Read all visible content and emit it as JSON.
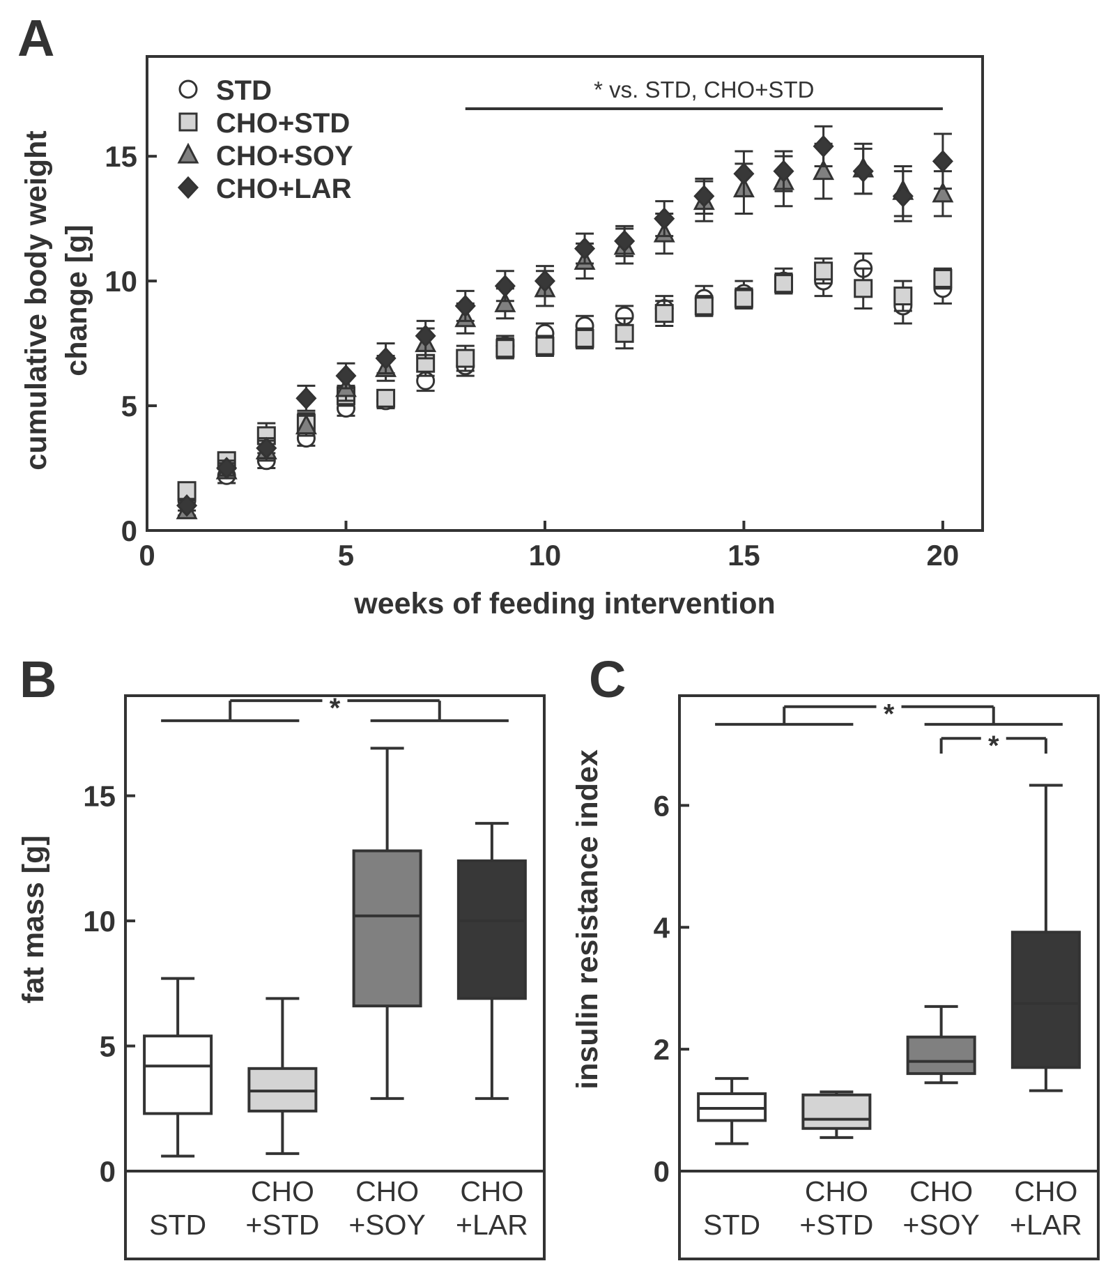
{
  "panels": {
    "a": {
      "label": "A"
    },
    "b": {
      "label": "B"
    },
    "c": {
      "label": "C"
    }
  },
  "colors": {
    "STD": "#ffffff",
    "CHO+STD": "#d4d4d4",
    "CHO+SOY": "#808080",
    "CHO+LAR": "#383838",
    "axis": "#333333"
  },
  "chart_data": [
    {
      "id": "A",
      "type": "scatter",
      "title": "",
      "xlabel": "weeks of feeding intervention",
      "ylabel_lines": [
        "cumulative body weight",
        "change [g]"
      ],
      "xlim": [
        0,
        21
      ],
      "ylim": [
        0,
        19
      ],
      "xticks": [
        0,
        5,
        10,
        15,
        20
      ],
      "yticks": [
        0,
        5,
        10,
        15
      ],
      "legend_position": "top-left",
      "annotation": {
        "text": "* vs. STD, CHO+STD",
        "x_from": 8,
        "x_to": 20
      },
      "x": [
        1,
        2,
        3,
        4,
        5,
        6,
        7,
        8,
        9,
        10,
        11,
        12,
        13,
        14,
        15,
        16,
        17,
        18,
        19,
        20
      ],
      "series": [
        {
          "name": "STD",
          "marker": "circle",
          "values": [
            1.2,
            2.2,
            2.8,
            3.7,
            4.9,
            5.2,
            6.0,
            6.6,
            7.4,
            7.9,
            8.2,
            8.6,
            8.9,
            9.3,
            9.5,
            10.0,
            10.0,
            10.5,
            9.0,
            9.7
          ],
          "errors": [
            0.2,
            0.3,
            0.3,
            0.3,
            0.3,
            0.3,
            0.4,
            0.4,
            0.4,
            0.4,
            0.4,
            0.4,
            0.5,
            0.5,
            0.5,
            0.5,
            0.6,
            0.6,
            0.7,
            0.6
          ]
        },
        {
          "name": "CHO+STD",
          "marker": "square",
          "values": [
            1.6,
            2.8,
            3.8,
            4.3,
            5.4,
            5.3,
            6.7,
            6.9,
            7.3,
            7.4,
            7.7,
            7.9,
            8.7,
            9.0,
            9.3,
            9.9,
            10.4,
            9.7,
            9.4,
            10.1
          ],
          "errors": [
            0.3,
            0.3,
            0.5,
            0.4,
            0.4,
            0.3,
            0.5,
            0.5,
            0.4,
            0.4,
            0.4,
            0.6,
            0.5,
            0.4,
            0.4,
            0.4,
            0.5,
            0.8,
            0.6,
            0.4
          ]
        },
        {
          "name": "CHO+SOY",
          "marker": "triangle",
          "values": [
            0.8,
            2.4,
            3.2,
            4.2,
            5.7,
            6.5,
            7.5,
            8.5,
            9.1,
            9.7,
            10.8,
            11.4,
            11.9,
            13.2,
            13.7,
            14.0,
            14.4,
            14.5,
            13.6,
            13.5
          ],
          "errors": [
            0.2,
            0.3,
            0.4,
            0.4,
            0.5,
            0.5,
            0.6,
            0.6,
            0.6,
            0.7,
            0.7,
            0.7,
            0.8,
            0.8,
            1.0,
            1.0,
            1.1,
            1.0,
            1.0,
            0.9
          ]
        },
        {
          "name": "CHO+LAR",
          "marker": "diamond",
          "values": [
            1.0,
            2.5,
            3.3,
            5.3,
            6.2,
            6.9,
            7.8,
            9.0,
            9.8,
            10.0,
            11.3,
            11.6,
            12.5,
            13.4,
            14.3,
            14.4,
            15.4,
            14.4,
            13.4,
            14.8
          ],
          "errors": [
            0.2,
            0.3,
            0.4,
            0.5,
            0.5,
            0.6,
            0.6,
            0.6,
            0.6,
            0.6,
            0.6,
            0.6,
            0.7,
            0.7,
            0.9,
            0.8,
            0.8,
            0.9,
            1.0,
            1.1
          ]
        }
      ]
    },
    {
      "id": "B",
      "type": "box",
      "title": "",
      "ylabel": "fat mass [g]",
      "xlabel": "",
      "ylim": [
        0,
        19
      ],
      "yticks": [
        0,
        5,
        10,
        15
      ],
      "categories": [
        {
          "name": "STD",
          "line1": "",
          "line2": "STD",
          "stats": {
            "min": 0.6,
            "q1": 2.3,
            "median": 4.2,
            "q3": 5.4,
            "max": 7.7
          }
        },
        {
          "name": "CHO+STD",
          "line1": "CHO",
          "line2": "+STD",
          "stats": {
            "min": 0.7,
            "q1": 2.4,
            "median": 3.2,
            "q3": 4.1,
            "max": 6.9
          }
        },
        {
          "name": "CHO+SOY",
          "line1": "CHO",
          "line2": "+SOY",
          "stats": {
            "min": 2.9,
            "q1": 6.6,
            "median": 10.2,
            "q3": 12.8,
            "max": 16.9
          }
        },
        {
          "name": "CHO+LAR",
          "line1": "CHO",
          "line2": "+LAR",
          "stats": {
            "min": 2.9,
            "q1": 6.9,
            "median": 10.0,
            "q3": 12.4,
            "max": 13.9
          }
        }
      ],
      "significance": [
        {
          "label": "*",
          "left_group": [
            0,
            1
          ],
          "right_group": [
            2,
            3
          ]
        }
      ]
    },
    {
      "id": "C",
      "type": "box",
      "title": "",
      "ylabel": "insulin resistance index",
      "xlabel": "",
      "ylim": [
        0,
        7.8
      ],
      "yticks": [
        0,
        2,
        4,
        6
      ],
      "categories": [
        {
          "name": "STD",
          "line1": "",
          "line2": "STD",
          "stats": {
            "min": 0.45,
            "q1": 0.83,
            "median": 1.03,
            "q3": 1.27,
            "max": 1.52
          }
        },
        {
          "name": "CHO+STD",
          "line1": "CHO",
          "line2": "+STD",
          "stats": {
            "min": 0.55,
            "q1": 0.7,
            "median": 0.85,
            "q3": 1.25,
            "max": 1.3
          }
        },
        {
          "name": "CHO+SOY",
          "line1": "CHO",
          "line2": "+SOY",
          "stats": {
            "min": 1.45,
            "q1": 1.6,
            "median": 1.8,
            "q3": 2.2,
            "max": 2.7
          }
        },
        {
          "name": "CHO+LAR",
          "line1": "CHO",
          "line2": "+LAR",
          "stats": {
            "min": 1.32,
            "q1": 1.7,
            "median": 2.75,
            "q3": 3.92,
            "max": 6.33
          }
        }
      ],
      "significance": [
        {
          "label": "*",
          "left_group": [
            0,
            1
          ],
          "right_group": [
            2,
            3
          ]
        },
        {
          "label": "*",
          "left_group": [
            2
          ],
          "right_group": [
            3
          ]
        }
      ]
    }
  ]
}
